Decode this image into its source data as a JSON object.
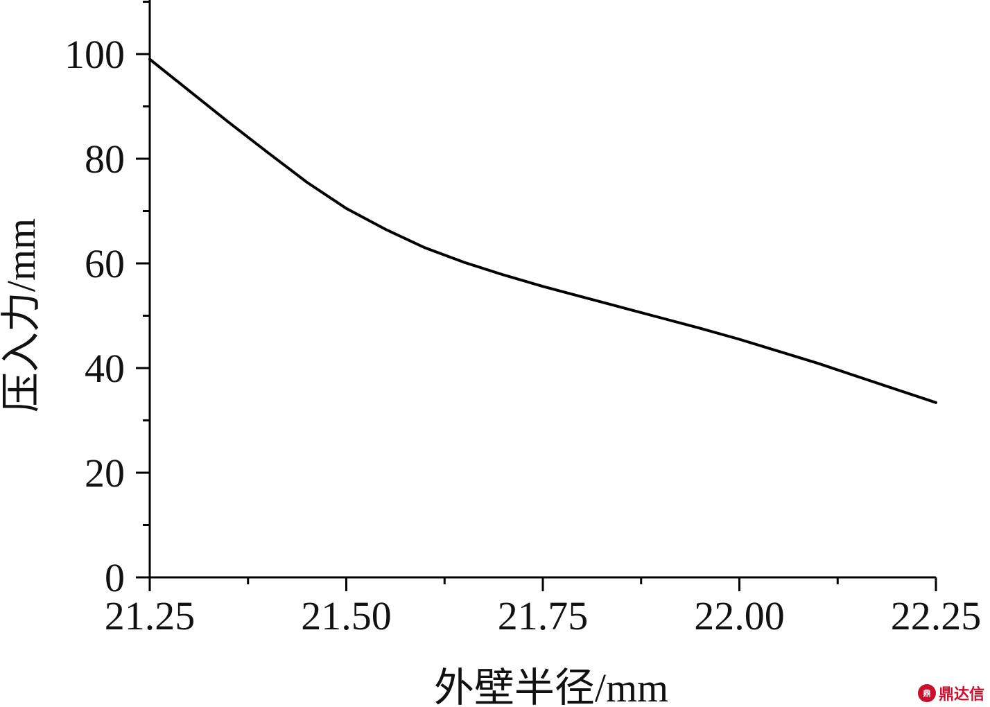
{
  "chart_data": {
    "type": "line",
    "title": "",
    "xlabel": "外壁半径/mm",
    "ylabel": "压入力/mm",
    "xlim": [
      21.25,
      22.25
    ],
    "ylim": [
      0,
      110
    ],
    "x_ticks": [
      "21.25",
      "21.50",
      "21.75",
      "22.00",
      "22.25"
    ],
    "y_ticks": [
      "0",
      "20",
      "40",
      "60",
      "80",
      "100"
    ],
    "grid": false,
    "legend": "none",
    "series": [
      {
        "color": "#000000",
        "x": [
          21.25,
          21.3,
          21.35,
          21.4,
          21.45,
          21.5,
          21.55,
          21.6,
          21.65,
          21.7,
          21.75,
          21.8,
          21.85,
          21.9,
          21.95,
          22.0,
          22.05,
          22.1,
          22.15,
          22.2,
          22.25
        ],
        "y": [
          99.0,
          93.0,
          87.0,
          81.2,
          75.5,
          70.5,
          66.5,
          63.0,
          60.2,
          57.8,
          55.6,
          53.6,
          51.6,
          49.6,
          47.6,
          45.5,
          43.2,
          40.9,
          38.4,
          35.9,
          33.4
        ]
      }
    ]
  },
  "watermark": {
    "text": "鼎达信",
    "icon": "dingdaxin-logo-icon"
  }
}
